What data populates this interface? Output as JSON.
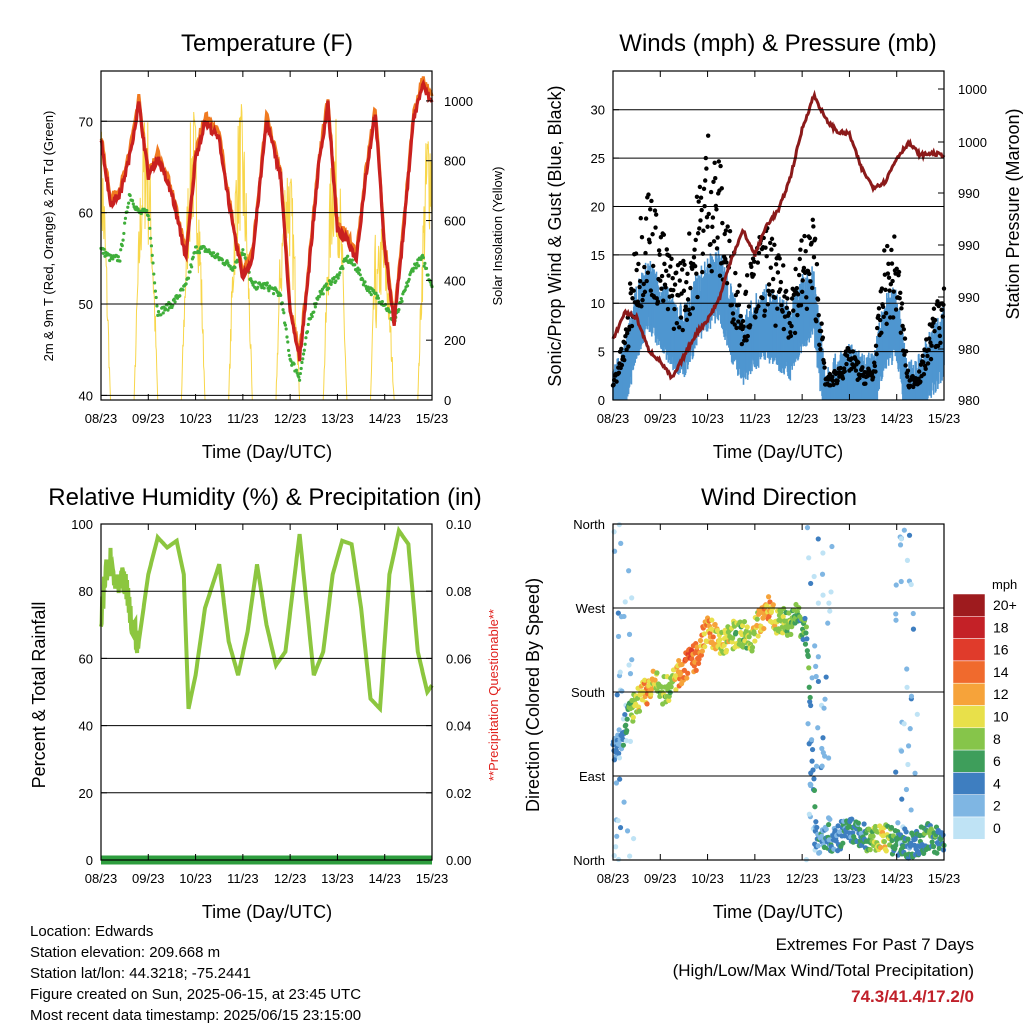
{
  "x_ticks": [
    "08/23",
    "09/23",
    "10/23",
    "11/23",
    "12/23",
    "13/23",
    "14/23",
    "15/23"
  ],
  "panels": {
    "temperature": {
      "title": "Temperature (F)",
      "xlabel": "Time (Day/UTC)",
      "ylabel_left": "2m & 9m T (Red, Orange) & 2m Td (Green)",
      "ylabel_right": "Solar Insolation (Yellow)",
      "left_ticks": [
        "40",
        "50",
        "60",
        "70"
      ],
      "right_ticks": [
        "0",
        "200",
        "400",
        "600",
        "800",
        "1000"
      ]
    },
    "winds": {
      "title": "Winds (mph) & Pressure (mb)",
      "xlabel": "Time (Day/UTC)",
      "ylabel_left": "Sonic/Prop Wind & Gust (Blue, Black)",
      "ylabel_right": "Station Pressure (Maroon)",
      "left_ticks": [
        "0",
        "5",
        "10",
        "15",
        "20",
        "25",
        "30"
      ],
      "right_ticks": [
        "980",
        "980",
        "990",
        "990",
        "990",
        "1000",
        "1000"
      ]
    },
    "humidity": {
      "title": "Relative Humidity (%) & Precipitation (in)",
      "xlabel": "Time (Day/UTC)",
      "ylabel_left": "Percent & Total Rainfall",
      "ylabel_right": "**Precipitation Questionable**",
      "left_ticks": [
        "0",
        "20",
        "40",
        "60",
        "80",
        "100"
      ],
      "right_ticks": [
        "0.00",
        "0.02",
        "0.04",
        "0.06",
        "0.08",
        "0.10"
      ]
    },
    "direction": {
      "title": "Wind Direction",
      "xlabel": "Time (Day/UTC)",
      "ylabel_left": "Direction (Colored By Speed)",
      "dir_ticks": [
        "North",
        "East",
        "South",
        "West",
        "North"
      ],
      "legend_title": "mph",
      "legend_labels": [
        "20+",
        "18",
        "16",
        "14",
        "12",
        "10",
        "8",
        "6",
        "4",
        "2",
        "0"
      ],
      "legend_colors": [
        "#9e1b1e",
        "#c42127",
        "#e03b2b",
        "#f06a2d",
        "#f6a33a",
        "#e8e04a",
        "#86c54a",
        "#3e9e5b",
        "#3e7ec0",
        "#7fb6e3",
        "#bfe3f5"
      ]
    }
  },
  "info": {
    "location": "Location: Edwards",
    "elevation": "Station elevation: 209.668 m",
    "latlon": "Station lat/lon: 44.3218; -75.2441",
    "created": "Figure created on Sun, 2025-06-15, at 23:45 UTC",
    "recent": "Most recent data timestamp: 2025/06/15 23:15:00"
  },
  "extremes": {
    "line1": "Extremes For Past 7 Days",
    "line2": "(High/Low/Max Wind/Total Precipitation)",
    "values": "74.3/41.4/17.2/0"
  },
  "colors": {
    "temp2m": "#c9201f",
    "temp9m": "#f07a20",
    "dewpoint": "#3fae3a",
    "solar": "#f8d64a",
    "wind": "#4f96d0",
    "gust": "#000000",
    "pressure": "#8b1a1a",
    "rh": "#8cc63f",
    "precip": "#2e9e3e",
    "questionable": "#e0201c",
    "extremes": "#c0202a"
  },
  "chart_data": [
    {
      "type": "line",
      "title": "Temperature (F)",
      "xlabel": "Time (Day/UTC)",
      "ylabel": "2m & 9m T (Red, Orange) & 2m Td (Green)",
      "y2label": "Solar Insolation (Yellow)",
      "x_range": [
        0,
        7
      ],
      "ylim": [
        39.5,
        75.5
      ],
      "y2lim": [
        0,
        1100
      ],
      "x": [
        0,
        0.2,
        0.4,
        0.6,
        0.8,
        1.0,
        1.2,
        1.5,
        1.8,
        2.0,
        2.2,
        2.5,
        2.8,
        3.0,
        3.2,
        3.5,
        3.8,
        4.0,
        4.2,
        4.4,
        4.6,
        4.8,
        5.0,
        5.2,
        5.4,
        5.6,
        5.8,
        6.0,
        6.2,
        6.4,
        6.6,
        6.8,
        7.0
      ],
      "series": [
        {
          "name": "2m T",
          "axis": "left",
          "values": [
            68,
            61,
            62,
            66,
            72,
            64,
            66,
            62,
            55,
            66,
            70,
            68,
            58,
            53,
            55,
            70,
            64,
            49,
            44,
            54,
            65,
            72,
            58,
            57,
            55,
            64,
            71,
            56,
            48,
            58,
            70,
            74,
            72
          ]
        },
        {
          "name": "2m Td",
          "axis": "left",
          "values": [
            56,
            55,
            55,
            62,
            60,
            60,
            49,
            50,
            52,
            56,
            56,
            55,
            54,
            56,
            52,
            52,
            51,
            44,
            42,
            48,
            51,
            52,
            53,
            55,
            54,
            52,
            51,
            50,
            48,
            51,
            54,
            55,
            52
          ]
        },
        {
          "name": "Solar",
          "axis": "right",
          "values": [
            0,
            0,
            1000,
            0,
            0,
            0,
            950,
            0,
            0,
            0,
            1000,
            0,
            0,
            0,
            1000,
            0,
            0,
            0,
            0,
            850,
            0,
            0,
            0,
            950,
            0,
            0,
            0,
            0,
            250,
            0,
            0,
            1000,
            0
          ]
        }
      ]
    },
    {
      "type": "scatter",
      "title": "Winds (mph) & Pressure (mb)",
      "xlabel": "Time (Day/UTC)",
      "ylabel": "Sonic/Prop Wind & Gust (Blue, Black)",
      "y2label": "Station Pressure (Maroon)",
      "x_range": [
        0,
        7
      ],
      "ylim": [
        0,
        34
      ],
      "x": [
        0,
        0.25,
        0.5,
        0.75,
        1.0,
        1.25,
        1.5,
        1.75,
        2.0,
        2.25,
        2.5,
        2.75,
        3.0,
        3.25,
        3.5,
        3.75,
        4.0,
        4.25,
        4.5,
        4.75,
        5.0,
        5.25,
        5.5,
        5.75,
        6.0,
        6.25,
        6.5,
        6.75,
        7.0
      ],
      "series": [
        {
          "name": "Wind",
          "values": [
            1,
            3,
            9,
            12,
            10,
            8,
            7,
            10,
            12,
            13,
            9,
            6,
            8,
            9,
            8,
            7,
            10,
            11,
            1,
            2,
            3,
            2,
            2,
            8,
            9,
            1,
            2,
            5,
            7
          ]
        },
        {
          "name": "Gust",
          "values": [
            2,
            6,
            16,
            20,
            16,
            13,
            13,
            18,
            25,
            22,
            15,
            10,
            14,
            16,
            13,
            11,
            15,
            17,
            2,
            3,
            5,
            3,
            3,
            14,
            15,
            2,
            3,
            8,
            11
          ]
        }
      ],
      "pressure_relative": [
        6.2,
        9.1,
        8.5,
        5.2,
        4.0,
        2.2,
        4.5,
        6.8,
        8.3,
        10.5,
        14.6,
        17.5,
        15.0,
        18.1,
        19.6,
        23.0,
        28.0,
        31.5,
        29.0,
        27.7,
        27.5,
        24.0,
        22.0,
        22.5,
        25.0,
        26.6,
        25.3,
        25.5,
        25.3
      ]
    },
    {
      "type": "line",
      "title": "Relative Humidity (%) & Precipitation (in)",
      "xlabel": "Time (Day/UTC)",
      "ylabel": "Percent & Total Rainfall",
      "y2label": "**Precipitation Questionable**",
      "x_range": [
        0,
        7
      ],
      "ylim": [
        0,
        100
      ],
      "y2lim": [
        0,
        0.1
      ],
      "x": [
        0,
        0.1,
        0.2,
        0.35,
        0.5,
        0.65,
        0.8,
        1.0,
        1.2,
        1.4,
        1.6,
        1.75,
        1.85,
        2.0,
        2.2,
        2.5,
        2.7,
        2.9,
        3.1,
        3.3,
        3.5,
        3.7,
        3.9,
        4.2,
        4.5,
        4.7,
        4.9,
        5.1,
        5.3,
        5.5,
        5.7,
        5.9,
        6.1,
        6.3,
        6.5,
        6.7,
        6.9,
        7.0
      ],
      "series": [
        {
          "name": "RH",
          "values": [
            70,
            85,
            88,
            80,
            83,
            70,
            65,
            85,
            96,
            93,
            95,
            85,
            45,
            55,
            75,
            88,
            65,
            55,
            68,
            88,
            70,
            58,
            62,
            97,
            55,
            62,
            85,
            95,
            94,
            75,
            48,
            45,
            85,
            98,
            94,
            62,
            50,
            52
          ]
        },
        {
          "name": "Precipitation",
          "values": [
            0,
            0,
            0,
            0,
            0,
            0,
            0,
            0,
            0,
            0,
            0,
            0,
            0,
            0,
            0,
            0,
            0,
            0,
            0,
            0,
            0,
            0,
            0,
            0,
            0,
            0,
            0,
            0,
            0,
            0,
            0,
            0,
            0,
            0,
            0,
            0,
            0,
            0
          ]
        }
      ]
    },
    {
      "type": "scatter",
      "title": "Wind Direction",
      "xlabel": "Time (Day/UTC)",
      "ylabel": "Direction (Colored By Speed)",
      "x_range": [
        0,
        7
      ],
      "y_categories": [
        "North",
        "East",
        "South",
        "West",
        "North"
      ],
      "ylim": [
        0,
        360
      ],
      "x": [
        0.1,
        0.3,
        0.5,
        0.7,
        0.9,
        1.0,
        1.2,
        1.4,
        1.6,
        1.8,
        2.0,
        2.3,
        2.5,
        2.7,
        2.9,
        3.1,
        3.3,
        3.5,
        3.7,
        3.9,
        4.1,
        4.3,
        4.5,
        4.7,
        4.9,
        5.1,
        5.3,
        5.5,
        5.7,
        5.9,
        6.1,
        6.3,
        6.5,
        6.7,
        6.9
      ],
      "series": [
        {
          "name": "Direction",
          "values": [
            120,
            150,
            170,
            180,
            190,
            180,
            185,
            200,
            210,
            220,
            250,
            230,
            240,
            245,
            235,
            255,
            270,
            255,
            255,
            260,
            240,
            20,
            25,
            20,
            30,
            30,
            25,
            20,
            25,
            20,
            20,
            15,
            20,
            25,
            20
          ]
        },
        {
          "name": "Speed",
          "values": [
            3,
            5,
            9,
            12,
            10,
            8,
            8,
            12,
            15,
            13,
            12,
            10,
            9,
            8,
            9,
            11,
            12,
            9,
            8,
            7,
            6,
            3,
            4,
            3,
            4,
            5,
            4,
            8,
            10,
            7,
            5,
            4,
            5,
            6,
            5
          ]
        }
      ]
    }
  ]
}
